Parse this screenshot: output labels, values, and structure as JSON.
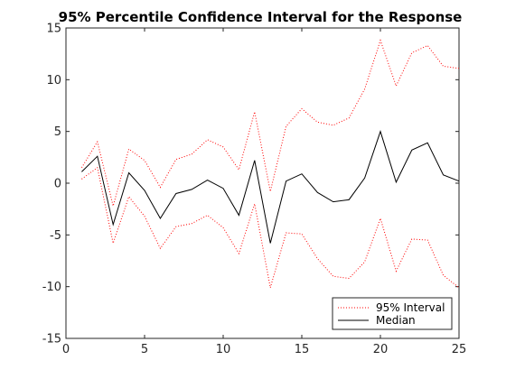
{
  "chart_data": {
    "type": "line",
    "title": "95% Percentile Confidence Interval for the Response",
    "xlabel": "",
    "ylabel": "",
    "xlim": [
      0,
      25
    ],
    "ylim": [
      -15,
      15
    ],
    "x_ticks": [
      0,
      5,
      10,
      15,
      20,
      25
    ],
    "y_ticks": [
      -15,
      -10,
      -5,
      0,
      5,
      10,
      15
    ],
    "grid": false,
    "legend_position": "bottom-right",
    "x": [
      1,
      2,
      3,
      4,
      5,
      6,
      7,
      8,
      9,
      10,
      11,
      12,
      13,
      14,
      15,
      16,
      17,
      18,
      19,
      20,
      21,
      22,
      23,
      24,
      25
    ],
    "series": [
      {
        "name": "95% Interval",
        "style": "dotted",
        "color": "#ff0000",
        "legend": true,
        "values": [
          1.5,
          4.0,
          -2.2,
          3.3,
          2.2,
          -0.4,
          2.3,
          2.8,
          4.2,
          3.5,
          1.3,
          6.9,
          -0.8,
          5.5,
          7.2,
          5.9,
          5.6,
          6.3,
          9.1,
          13.8,
          9.4,
          12.6,
          13.3,
          11.3,
          11.1
        ]
      },
      {
        "name": "95% Interval",
        "style": "dotted",
        "color": "#ff0000",
        "legend": false,
        "values": [
          0.4,
          1.5,
          -5.8,
          -1.3,
          -3.2,
          -6.3,
          -4.2,
          -3.9,
          -3.1,
          -4.3,
          -6.8,
          -2.0,
          -10.1,
          -4.8,
          -4.9,
          -7.3,
          -9.0,
          -9.2,
          -7.6,
          -3.4,
          -8.5,
          -5.4,
          -5.5,
          -8.9,
          -10.1
        ]
      },
      {
        "name": "Median",
        "style": "solid",
        "color": "#000000",
        "legend": true,
        "values": [
          1.1,
          2.6,
          -4.0,
          1.0,
          -0.7,
          -3.4,
          -1.0,
          -0.6,
          0.3,
          -0.5,
          -3.1,
          2.2,
          -5.8,
          0.2,
          0.9,
          -0.9,
          -1.8,
          -1.6,
          0.5,
          5.0,
          0.1,
          3.2,
          3.9,
          0.8,
          0.2
        ]
      }
    ]
  }
}
